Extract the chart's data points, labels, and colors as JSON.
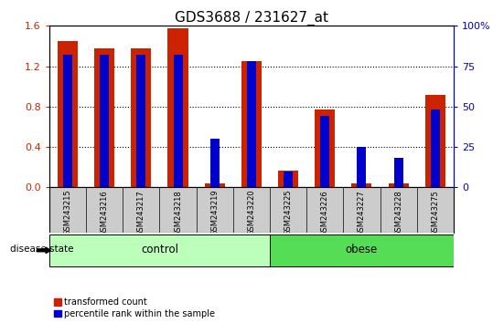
{
  "title": "GDS3688 / 231627_at",
  "samples": [
    "GSM243215",
    "GSM243216",
    "GSM243217",
    "GSM243218",
    "GSM243219",
    "GSM243220",
    "GSM243225",
    "GSM243226",
    "GSM243227",
    "GSM243228",
    "GSM243275"
  ],
  "transformed_count": [
    1.45,
    1.38,
    1.38,
    1.58,
    0.04,
    1.25,
    0.17,
    0.77,
    0.04,
    0.04,
    0.92
  ],
  "percentile_rank_pct": [
    82,
    82,
    82,
    82,
    30,
    78,
    10,
    44,
    25,
    18,
    48
  ],
  "groups": [
    {
      "label": "control",
      "start": 0,
      "end": 5,
      "color": "#bbffbb"
    },
    {
      "label": "obese",
      "start": 6,
      "end": 10,
      "color": "#55dd55"
    }
  ],
  "ylim_left": [
    0,
    1.6
  ],
  "ylim_right": [
    0,
    100
  ],
  "yticks_left": [
    0,
    0.4,
    0.8,
    1.2,
    1.6
  ],
  "yticks_right": [
    0,
    25,
    50,
    75,
    100
  ],
  "bar_color_red": "#cc2200",
  "bar_color_blue": "#0000cc",
  "tick_label_bg": "#cccccc",
  "title_fontsize": 11,
  "legend_red_label": "transformed count",
  "legend_blue_label": "percentile rank within the sample",
  "disease_state_label": "disease state",
  "bar_width": 0.55,
  "blue_bar_width": 0.25
}
